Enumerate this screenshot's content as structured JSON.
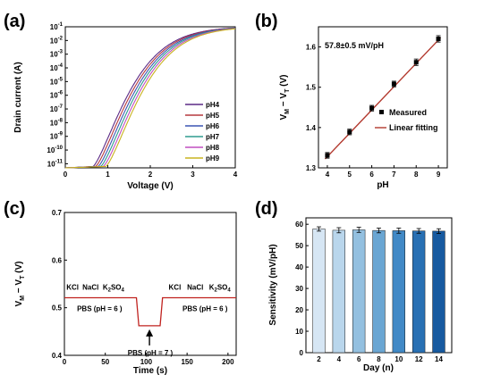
{
  "chart_data": [
    {
      "panel": "(a)",
      "type": "line",
      "xlabel": "Voltage (V)",
      "ylabel": "Drain current (A)",
      "xlim": [
        0,
        4
      ],
      "xticks": [
        "0",
        "1",
        "2",
        "3",
        "4"
      ],
      "ylog": true,
      "yticks": [
        "10^-11",
        "10^-10",
        "10^-9",
        "10^-8",
        "10^-7",
        "10^-6",
        "10^-5",
        "10^-4",
        "10^-3",
        "10^-2",
        "10^-1"
      ],
      "legend_position": "bottom-right",
      "series": [
        {
          "name": "pH4",
          "color": "#5b2a86",
          "threshold_v": 0.65
        },
        {
          "name": "pH5",
          "color": "#b5383f",
          "threshold_v": 0.71
        },
        {
          "name": "pH6",
          "color": "#3b55b4",
          "threshold_v": 0.77
        },
        {
          "name": "pH7",
          "color": "#2e9b8f",
          "threshold_v": 0.83
        },
        {
          "name": "pH8",
          "color": "#c04fc0",
          "threshold_v": 0.89
        },
        {
          "name": "pH9",
          "color": "#c8b320",
          "threshold_v": 0.95
        }
      ]
    },
    {
      "panel": "(b)",
      "type": "scatter",
      "xlabel": "pH",
      "ylabel": "V_M − V_T (V)",
      "xlim": [
        3.6,
        9.4
      ],
      "ylim": [
        1.3,
        1.65
      ],
      "xticks": [
        "4",
        "5",
        "6",
        "7",
        "8",
        "9"
      ],
      "yticks": [
        "1.3",
        "1.4",
        "1.5",
        "1.6"
      ],
      "annotation": "57.8±0.5 mV/pH",
      "x": [
        4,
        5,
        6,
        7,
        8,
        9
      ],
      "y": [
        1.331,
        1.389,
        1.448,
        1.508,
        1.562,
        1.62
      ],
      "err": [
        0.007,
        0.007,
        0.007,
        0.007,
        0.008,
        0.008
      ],
      "fit": {
        "x": [
          3.9,
          9.1
        ],
        "y": [
          1.322,
          1.623
        ]
      },
      "legend": [
        "Measured",
        "Linear fitting"
      ],
      "legend_position": "right-middle"
    },
    {
      "panel": "(c)",
      "type": "line",
      "xlabel": "Time (s)",
      "ylabel": "V_M − V_T (V)",
      "xlim": [
        0,
        210
      ],
      "ylim": [
        0.4,
        0.7
      ],
      "xticks": [
        "0",
        "50",
        "100",
        "150",
        "200"
      ],
      "yticks": [
        "0.4",
        "0.5",
        "0.6",
        "0.7"
      ],
      "color": "#c0221f",
      "x": [
        0,
        88,
        91,
        117,
        120,
        210
      ],
      "y": [
        0.521,
        0.521,
        0.462,
        0.462,
        0.521,
        0.521
      ],
      "annotations": [
        {
          "text": "KCl",
          "x": 10
        },
        {
          "text": "NaCl",
          "x": 32
        },
        {
          "text": "K₂SO₄",
          "x": 60
        },
        {
          "text": "KCl",
          "x": 135
        },
        {
          "text": "NaCl",
          "x": 160
        },
        {
          "text": "K₂SO₄",
          "x": 190
        }
      ],
      "labels": [
        "PBS (pH = 6 )",
        "PBS (pH = 7 )",
        "PBS (pH = 6 )"
      ]
    },
    {
      "panel": "(d)",
      "type": "bar",
      "xlabel": "Day (n)",
      "ylabel": "Sensitivity (mV/pH)",
      "categories": [
        "2",
        "4",
        "6",
        "8",
        "10",
        "12",
        "14"
      ],
      "values": [
        57.8,
        57.2,
        57.4,
        57.1,
        57.0,
        56.9,
        56.8
      ],
      "err": [
        1.0,
        1.2,
        1.2,
        1.1,
        1.2,
        1.1,
        1.1
      ],
      "ylim": [
        0,
        60
      ],
      "yticks": [
        "0",
        "10",
        "20",
        "30",
        "40",
        "50",
        "60"
      ],
      "colors": [
        "#d6e6f4",
        "#b9d6ec",
        "#93c0e0",
        "#6aa6d3",
        "#4189c6",
        "#2870b4",
        "#175aa0"
      ]
    }
  ]
}
